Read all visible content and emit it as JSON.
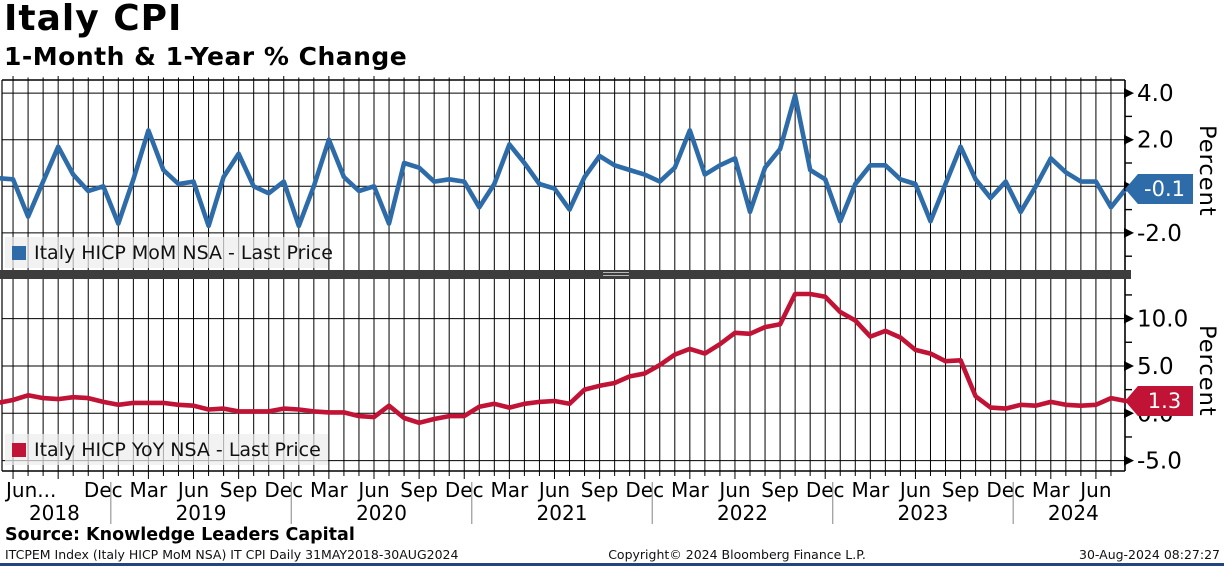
{
  "header": {
    "title": "Italy CPI",
    "subtitle": "1-Month & 1-Year % Change"
  },
  "source_line": "Source: Knowledge Leaders Capital",
  "footer": {
    "left": "ITCPEM Index (Italy HICP MoM NSA) IT CPI  Daily 31MAY2018-30AUG2024",
    "center": "Copyright© 2024 Bloomberg Finance L.P.",
    "right": "30-Aug-2024 08:27:27"
  },
  "colors": {
    "mom_blue": "#2D6CA8",
    "yoy_red": "#C01336",
    "grid": "#000000",
    "separator": "#3d3d3d",
    "year_divider": "#999999"
  },
  "chart_data": [
    {
      "type": "line",
      "title": "Italy HICP MoM NSA - Last Price",
      "ylabel": "Percent",
      "legend_swatch": "blue-square",
      "last_price": -0.1,
      "y_ticks": [
        4.0,
        2.0,
        0.0,
        -2.0
      ],
      "y_minor_ticks": [
        3.0,
        1.0,
        -1.0,
        -3.0
      ],
      "ylim": [
        -3.6,
        4.56
      ],
      "x_start": "May 2018",
      "x_end": "Aug 2024",
      "frequency": "monthly",
      "values": [
        0.35,
        0.3,
        -1.3,
        0.2,
        1.7,
        0.5,
        -0.2,
        0.0,
        -1.6,
        0.3,
        2.4,
        0.7,
        0.1,
        0.2,
        -1.7,
        0.4,
        1.4,
        0.0,
        -0.3,
        0.2,
        -1.7,
        0.0,
        2.0,
        0.4,
        -0.2,
        0.0,
        -1.6,
        1.0,
        0.8,
        0.2,
        0.3,
        0.2,
        -0.9,
        0.1,
        1.8,
        1.0,
        0.1,
        -0.1,
        -1.0,
        0.4,
        1.3,
        0.9,
        0.7,
        0.5,
        0.2,
        0.8,
        2.4,
        0.5,
        0.9,
        1.2,
        -1.1,
        0.8,
        1.6,
        3.9,
        0.7,
        0.3,
        -1.5,
        0.1,
        0.9,
        0.9,
        0.3,
        0.1,
        -1.5,
        0.1,
        1.7,
        0.3,
        -0.5,
        0.2,
        -1.1,
        0.0,
        1.2,
        0.6,
        0.2,
        0.2,
        -0.9,
        -0.1
      ]
    },
    {
      "type": "line",
      "title": "Italy HICP YoY NSA - Last Price",
      "ylabel": "Percent",
      "legend_swatch": "red-square",
      "last_price": 1.3,
      "y_ticks": [
        10.0,
        5.0,
        0.0,
        -5.0
      ],
      "y_minor_ticks": [
        12.5,
        7.5,
        2.5,
        -2.5
      ],
      "ylim": [
        -6.1,
        14.2
      ],
      "x_start": "May 2018",
      "x_end": "Aug 2024",
      "frequency": "monthly",
      "values": [
        1.1,
        1.4,
        1.9,
        1.6,
        1.5,
        1.7,
        1.6,
        1.2,
        0.9,
        1.1,
        1.1,
        1.1,
        0.9,
        0.8,
        0.4,
        0.5,
        0.2,
        0.2,
        0.2,
        0.5,
        0.4,
        0.2,
        0.1,
        0.1,
        -0.3,
        -0.4,
        0.8,
        -0.5,
        -1.0,
        -0.6,
        -0.3,
        -0.3,
        0.7,
        1.0,
        0.6,
        1.0,
        1.2,
        1.3,
        1.0,
        2.5,
        2.9,
        3.2,
        3.9,
        4.2,
        5.1,
        6.2,
        6.8,
        6.3,
        7.3,
        8.5,
        8.4,
        9.1,
        9.4,
        12.6,
        12.6,
        12.3,
        10.7,
        9.8,
        8.1,
        8.7,
        8.0,
        6.7,
        6.3,
        5.5,
        5.6,
        1.8,
        0.6,
        0.5,
        0.9,
        0.8,
        1.2,
        0.9,
        0.8,
        0.9,
        1.6,
        1.3
      ]
    }
  ],
  "x_axis": {
    "tick_labels": [
      {
        "label": "Jun...",
        "k": 1
      },
      {
        "label": "Dec",
        "k": 7
      },
      {
        "label": "Mar",
        "k": 10
      },
      {
        "label": "Jun",
        "k": 13
      },
      {
        "label": "Sep",
        "k": 16
      },
      {
        "label": "Dec",
        "k": 19
      },
      {
        "label": "Mar",
        "k": 22
      },
      {
        "label": "Jun",
        "k": 25
      },
      {
        "label": "Sep",
        "k": 28
      },
      {
        "label": "Dec",
        "k": 31
      },
      {
        "label": "Mar",
        "k": 34
      },
      {
        "label": "Jun",
        "k": 37
      },
      {
        "label": "Sep",
        "k": 40
      },
      {
        "label": "Dec",
        "k": 43
      },
      {
        "label": "Mar",
        "k": 46
      },
      {
        "label": "Jun",
        "k": 49
      },
      {
        "label": "Sep",
        "k": 52
      },
      {
        "label": "Dec",
        "k": 55
      },
      {
        "label": "Mar",
        "k": 58
      },
      {
        "label": "Jun",
        "k": 61
      },
      {
        "label": "Sep",
        "k": 64
      },
      {
        "label": "Dec",
        "k": 67
      },
      {
        "label": "Mar",
        "k": 70
      },
      {
        "label": "Jun",
        "k": 73
      }
    ],
    "years": [
      {
        "label": "2018",
        "center_k": 3.75
      },
      {
        "label": "2019",
        "center_k": 13.5
      },
      {
        "label": "2020",
        "center_k": 25.5
      },
      {
        "label": "2021",
        "center_k": 37.5
      },
      {
        "label": "2022",
        "center_k": 49.5
      },
      {
        "label": "2023",
        "center_k": 61.5
      },
      {
        "label": "2024",
        "center_k": 71.5
      }
    ],
    "year_divider_k": [
      7.5,
      19.5,
      31.5,
      43.5,
      55.5,
      67.5
    ]
  }
}
